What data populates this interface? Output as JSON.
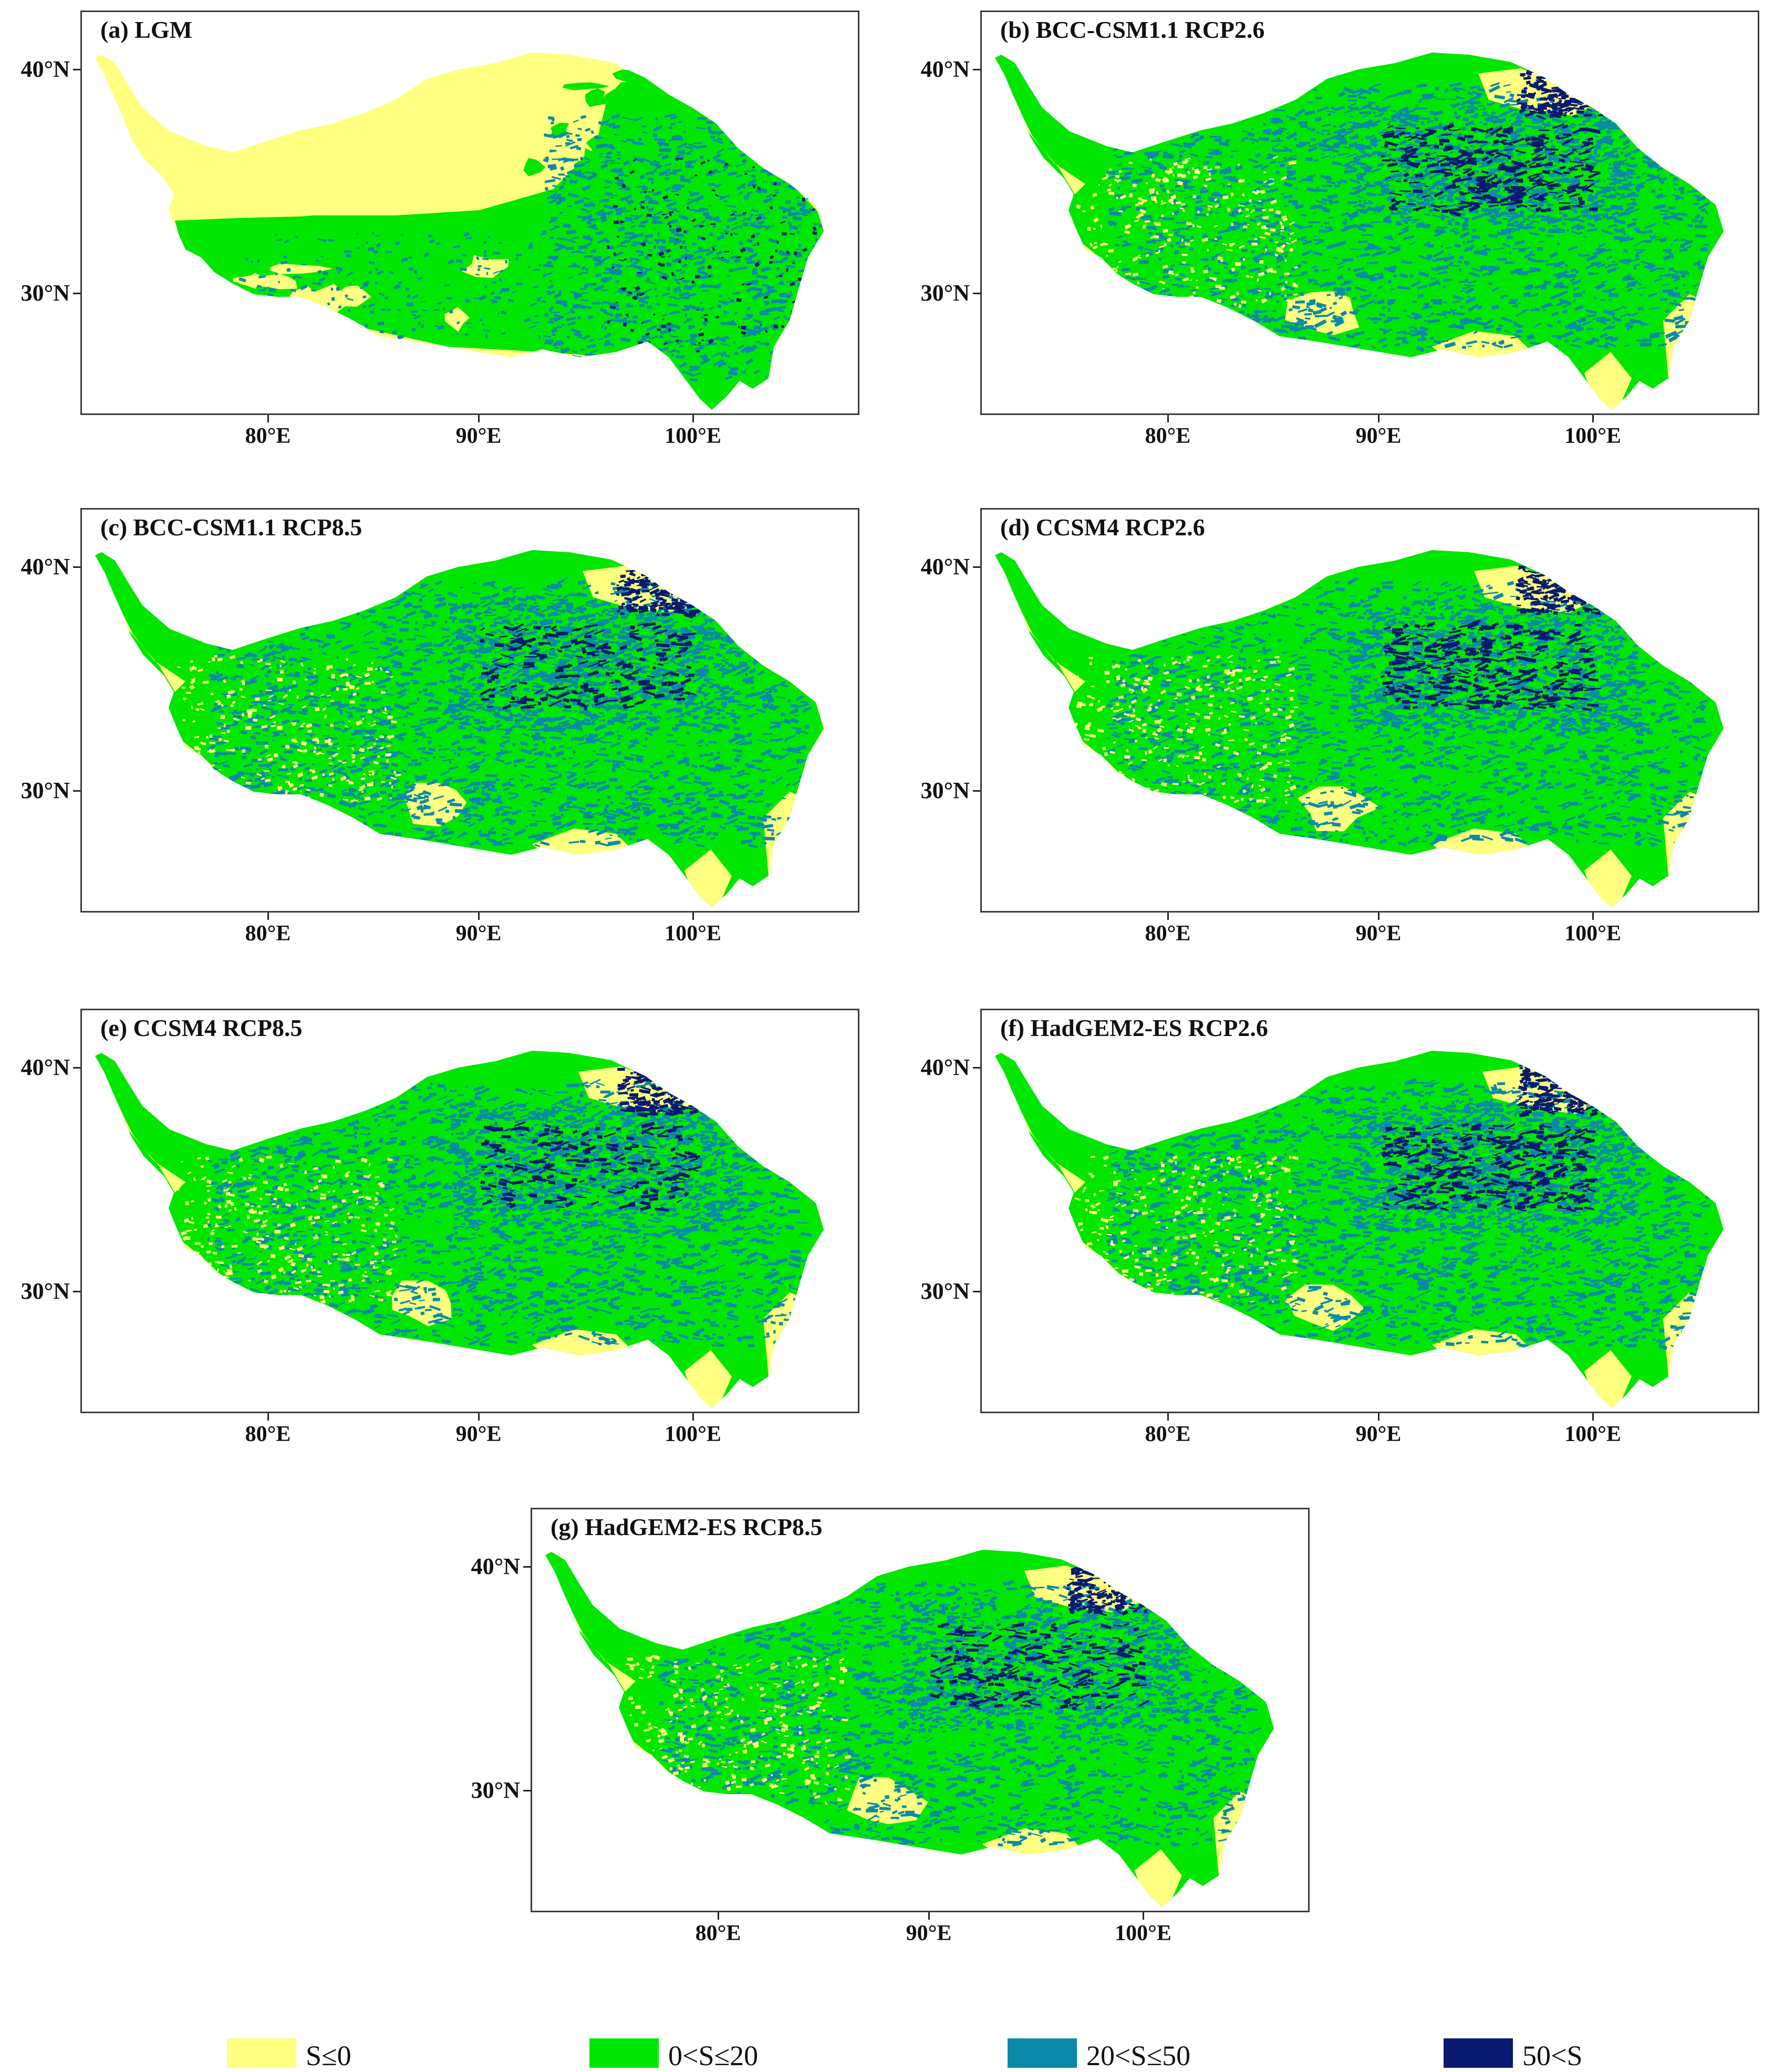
{
  "colors": {
    "s_le_0": "#ffff80",
    "s_0_20": "#00e600",
    "s_20_50": "#0a8aa8",
    "s_gt_50": "#0a1a6e"
  },
  "axes": {
    "lat_ticks": [
      "40°N",
      "30°N"
    ],
    "lon_ticks": [
      "80°E",
      "90°E",
      "100°E"
    ]
  },
  "panels": [
    {
      "title": "(a) LGM"
    },
    {
      "title": "(b) BCC-CSM1.1 RCP2.6"
    },
    {
      "title": "(c) BCC-CSM1.1 RCP8.5"
    },
    {
      "title": "(d) CCSM4 RCP2.6"
    },
    {
      "title": "(e) CCSM4 RCP8.5"
    },
    {
      "title": "(f) HadGEM2-ES RCP2.6"
    },
    {
      "title": "(g) HadGEM2-ES RCP8.5"
    }
  ],
  "legend": [
    {
      "label": "S≤0",
      "color": "#ffff80"
    },
    {
      "label": "0<S≤20",
      "color": "#00e600"
    },
    {
      "label": "20<S≤50",
      "color": "#0a8aa8"
    },
    {
      "label": "50<S",
      "color": "#0a1a6e"
    }
  ]
}
